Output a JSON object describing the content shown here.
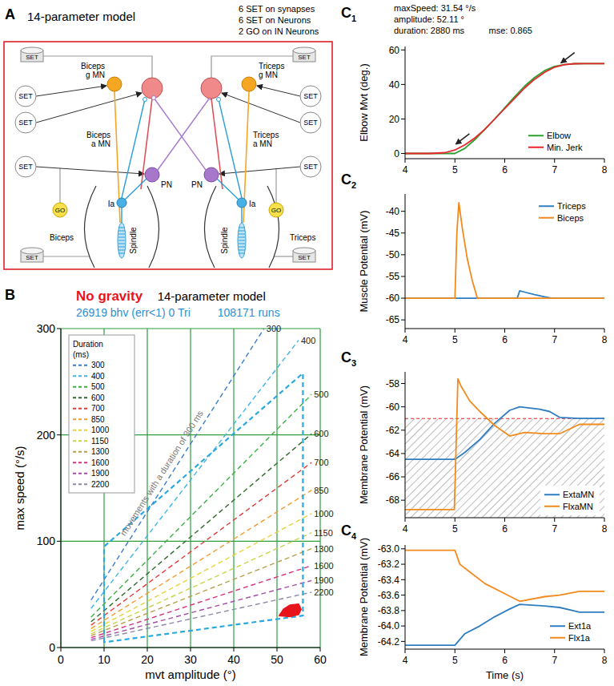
{
  "panel_a": {
    "letter": "A",
    "title": "14-parameter model",
    "notes": [
      "6 SET on synapses",
      "6 SET on Neurons",
      "2 GO on IN Neurons"
    ],
    "set_label": "SET",
    "go_label": "GO",
    "left": {
      "g_mn": [
        "Biceps",
        "g MN"
      ],
      "a_mn": [
        "Biceps",
        "a MN"
      ],
      "pn": "PN",
      "ia": "Ia",
      "spindle": "Spindle",
      "muscle": "Biceps"
    },
    "right": {
      "g_mn": [
        "Triceps",
        "g MN"
      ],
      "a_mn": [
        "Triceps",
        "a MN"
      ],
      "pn": "PN",
      "ia": "Ia",
      "spindle": "Spindle",
      "muscle": "Triceps"
    }
  },
  "chart_data": [
    {
      "letter": "B",
      "type": "line",
      "title": "No gravity",
      "subtitle": "14-parameter model",
      "stats": [
        "26919 bhv (err<1) 0 Tri",
        "108171 runs"
      ],
      "x_label": "mvt amplitude (°)",
      "y_label": "max speed (°/s)",
      "xlim": [
        0,
        60
      ],
      "xticks": [
        0,
        10,
        20,
        30,
        40,
        50,
        60
      ],
      "ylim": [
        0,
        300
      ],
      "yticks": [
        0,
        100,
        200,
        300
      ],
      "grid": true,
      "legend": "upper left",
      "legend_title": "Duration (ms)",
      "annotations": [
        {
          "text": "movements with a duration of 300 ms"
        }
      ],
      "series": [
        {
          "name": "300",
          "color": "#3d7cc9",
          "line_style": "dashed",
          "x": [
            7,
            47
          ],
          "values": [
            44.7,
            300
          ]
        },
        {
          "name": "400",
          "color": "#3fb5e5",
          "line_style": "dashed",
          "x": [
            7,
            55
          ],
          "values": [
            36.8,
            289
          ]
        },
        {
          "name": "500",
          "color": "#3cb043",
          "line_style": "dashed",
          "x": [
            7,
            58
          ],
          "values": [
            28.7,
            238
          ]
        },
        {
          "name": "600",
          "color": "#2d6a2d",
          "line_style": "dashed",
          "x": [
            7,
            58
          ],
          "values": [
            24.3,
            201
          ]
        },
        {
          "name": "700",
          "color": "#e23b3b",
          "line_style": "dashed",
          "x": [
            7,
            58
          ],
          "values": [
            21.0,
            174
          ]
        },
        {
          "name": "850",
          "color": "#f39c34",
          "line_style": "dashed",
          "x": [
            7,
            58
          ],
          "values": [
            17.9,
            148
          ]
        },
        {
          "name": "1000",
          "color": "#e7d33a",
          "line_style": "dashed",
          "x": [
            7,
            58
          ],
          "values": [
            15.2,
            126
          ]
        },
        {
          "name": "1150",
          "color": "#c8d44a",
          "line_style": "dashed",
          "x": [
            7,
            58
          ],
          "values": [
            13.0,
            108
          ]
        },
        {
          "name": "1300",
          "color": "#b8a04a",
          "line_style": "dashed",
          "x": [
            7,
            58
          ],
          "values": [
            11.2,
            93
          ]
        },
        {
          "name": "1600",
          "color": "#d6337f",
          "line_style": "dashed",
          "x": [
            7,
            58
          ],
          "values": [
            9.3,
            77
          ]
        },
        {
          "name": "1900",
          "color": "#a64ca6",
          "line_style": "dashed",
          "x": [
            7,
            58
          ],
          "values": [
            7.6,
            63
          ]
        },
        {
          "name": "2200",
          "color": "#8a8aa8",
          "line_style": "dashed",
          "x": [
            7,
            58
          ],
          "values": [
            6.3,
            52
          ]
        },
        {
          "type": "polygon",
          "color": "#2aa9e0",
          "line_style": "dashed",
          "x": [
            10,
            10,
            56,
            56,
            10
          ],
          "values": [
            5,
            95,
            258,
            30,
            5
          ]
        },
        {
          "type": "area",
          "color": "#e8141c",
          "x": [
            50.5,
            51.5,
            53,
            55,
            55.6,
            55,
            53,
            50.5
          ],
          "values": [
            30,
            36,
            40,
            41,
            36,
            31,
            29,
            30
          ]
        }
      ]
    },
    {
      "letter": "C1",
      "type": "line",
      "info": [
        "maxSpeed: 31.54 °/s",
        "amplitude: 52.11 °",
        "duration: 2880 ms",
        "mse: 0.865"
      ],
      "y_label": "Elbow Mvt (deg.)",
      "xlim": [
        4,
        8
      ],
      "xticks": [
        4,
        5,
        6,
        7,
        8
      ],
      "ylim": [
        -3,
        62
      ],
      "yticks": [
        0,
        20,
        40,
        60
      ],
      "legend": "lower right",
      "arrows": {
        "x": [
          4.97,
          7.08
        ],
        "y": [
          4,
          51
        ]
      },
      "series": [
        {
          "name": "Elbow",
          "color": "#2ca02c",
          "x": [
            4,
            4.5,
            4.8,
            5.0,
            5.2,
            5.4,
            5.6,
            5.8,
            6.0,
            6.2,
            6.4,
            6.6,
            6.8,
            7.0,
            7.2,
            7.4,
            7.6,
            8
          ],
          "values": [
            0,
            0,
            0,
            0,
            3,
            8,
            14,
            20,
            26.5,
            33,
            39,
            44,
            48,
            50.5,
            51.5,
            52,
            52.1,
            52.1
          ]
        },
        {
          "name": "Min. Jerk",
          "color": "#e8262b",
          "x": [
            4,
            4.5,
            4.8,
            5.0,
            5.2,
            5.4,
            5.6,
            5.8,
            6.0,
            6.2,
            6.4,
            6.6,
            6.8,
            7.0,
            7.2,
            7.4,
            7.6,
            8
          ],
          "values": [
            0,
            0,
            0.5,
            2,
            5,
            9,
            14,
            20,
            26,
            32,
            38,
            43,
            47,
            50,
            51.5,
            52,
            52.1,
            52.1
          ]
        }
      ]
    },
    {
      "letter": "C2",
      "type": "line",
      "y_label": "Muscle Potential (mV)",
      "xlim": [
        4,
        8
      ],
      "xticks": [
        4,
        5,
        6,
        7,
        8
      ],
      "ylim": [
        -67,
        -36
      ],
      "yticks": [
        -65,
        -60,
        -55,
        -50,
        -45,
        -40
      ],
      "legend": "upper right",
      "series": [
        {
          "name": "Triceps",
          "color": "#2f7ec1",
          "x": [
            4,
            6.25,
            6.3,
            6.4,
            6.6,
            6.8,
            6.95,
            8
          ],
          "values": [
            -60,
            -60,
            -58.3,
            -58.6,
            -59.2,
            -59.7,
            -60,
            -60
          ]
        },
        {
          "name": "Biceps",
          "color": "#f28a1e",
          "x": [
            4,
            5.0,
            5.04,
            5.08,
            5.15,
            5.25,
            5.35,
            5.45,
            8
          ],
          "values": [
            -60,
            -60,
            -45,
            -38,
            -44,
            -51,
            -56,
            -60,
            -60
          ]
        }
      ]
    },
    {
      "letter": "C3",
      "type": "line",
      "y_label": "Membrane Potential (mV)",
      "xlim": [
        4,
        8
      ],
      "xticks": [
        4,
        5,
        6,
        7,
        8
      ],
      "ylim": [
        -69.5,
        -57
      ],
      "yticks": [
        -68,
        -66,
        -64,
        -62,
        -60,
        -58
      ],
      "legend": "lower right",
      "threshold": -61,
      "series": [
        {
          "name": "ExtaMN",
          "color": "#2f7ec1",
          "x": [
            4,
            5,
            5.2,
            5.5,
            5.8,
            6.1,
            6.3,
            6.7,
            6.9,
            7.1,
            7.5,
            8
          ],
          "values": [
            -64.5,
            -64.5,
            -63.9,
            -62.8,
            -61.4,
            -60.3,
            -60.0,
            -60.2,
            -60.4,
            -60.9,
            -61,
            -61
          ]
        },
        {
          "name": "FlxaMN",
          "color": "#f28a1e",
          "x": [
            4,
            4.99,
            5.06,
            5.12,
            5.3,
            5.5,
            5.8,
            6.1,
            6.4,
            6.8,
            7.1,
            7.5,
            8
          ],
          "values": [
            -68.8,
            -68.8,
            -57.6,
            -58.2,
            -59.5,
            -60.4,
            -61.6,
            -62.5,
            -62.2,
            -62.3,
            -62.3,
            -61.5,
            -61.5
          ]
        }
      ]
    },
    {
      "letter": "C4",
      "type": "line",
      "x_label": "Time (s)",
      "y_label": "Membrane Potential (mV)",
      "xlim": [
        4,
        8
      ],
      "xticks": [
        4,
        5,
        6,
        7,
        8
      ],
      "ylim": [
        -64.3,
        -62.95
      ],
      "yticks": [
        {
          "value": -64,
          "label": "-64.0"
        },
        -64.2,
        -63.8,
        -63.6,
        -63.4,
        -63.2,
        {
          "value": -63,
          "label": "-63.0"
        }
      ],
      "legend": "lower right",
      "series": [
        {
          "name": "Ext1a",
          "color": "#2f7ec1",
          "x": [
            4,
            5,
            5.2,
            5.5,
            5.8,
            6.1,
            6.3,
            6.8,
            7.1,
            7.5,
            8
          ],
          "values": [
            -64.25,
            -64.25,
            -64.1,
            -64.0,
            -63.88,
            -63.78,
            -63.72,
            -63.74,
            -63.76,
            -63.82,
            -63.82
          ]
        },
        {
          "name": "Flx1a",
          "color": "#f28a1e",
          "x": [
            4,
            5,
            5.1,
            5.3,
            5.6,
            6.0,
            6.3,
            6.8,
            7.1,
            7.5,
            8
          ],
          "values": [
            -63.02,
            -63.02,
            -63.2,
            -63.3,
            -63.45,
            -63.58,
            -63.68,
            -63.62,
            -63.6,
            -63.55,
            -63.55
          ]
        }
      ]
    }
  ]
}
